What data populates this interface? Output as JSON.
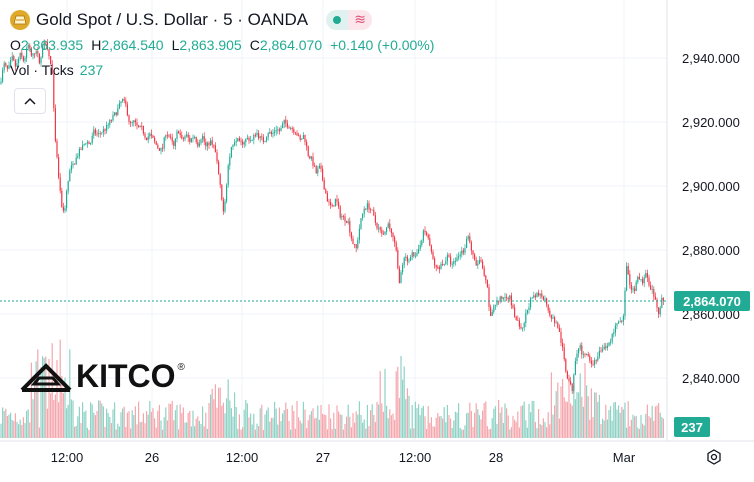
{
  "header": {
    "title": "Gold Spot / U.S. Dollar · 5 · OANDA",
    "market_status_icon": "green-dot-icon",
    "indicator_icon": "wave-icon"
  },
  "ohlc": {
    "o_label": "O",
    "o_value": "2,863.935",
    "h_label": "H",
    "h_value": "2,864.540",
    "l_label": "L",
    "l_value": "2,863.905",
    "c_label": "C",
    "c_value": "2,864.070",
    "change": "+0.140 (+0.00%)"
  },
  "volume_legend": {
    "label": "Vol · Ticks",
    "value": "237"
  },
  "watermark": {
    "text": "KITCO",
    "mark": "®"
  },
  "colors": {
    "up": "#22ab94",
    "down": "#f23645",
    "vol_up": "#8fd3c6",
    "vol_down": "#f5a7ad",
    "grid": "#f0f3fa"
  },
  "chart_data": {
    "type": "candlestick",
    "y_axis": {
      "min": 2830,
      "max": 2946,
      "ticks": [
        2940,
        2920,
        2900,
        2880,
        2860,
        2840
      ],
      "tick_labels": [
        "2,940.000",
        "2,920.000",
        "2,900.000",
        "2,880.000",
        "2,860.000",
        "2,840.000"
      ]
    },
    "x_axis": {
      "tick_labels": [
        "12:00",
        "26",
        "12:00",
        "27",
        "12:00",
        "28",
        "Mar"
      ]
    },
    "current_price": {
      "value": 2864.07,
      "label": "2,864.070"
    },
    "current_volume": {
      "value": 237,
      "label": "237"
    },
    "price_path": [
      [
        0,
        2932
      ],
      [
        4,
        2938
      ],
      [
        8,
        2936
      ],
      [
        12,
        2940
      ],
      [
        16,
        2937
      ],
      [
        20,
        2941
      ],
      [
        24,
        2939
      ],
      [
        28,
        2944
      ],
      [
        32,
        2940
      ],
      [
        36,
        2943
      ],
      [
        40,
        2938
      ],
      [
        44,
        2946
      ],
      [
        48,
        2942
      ],
      [
        52,
        2936
      ],
      [
        55,
        2915
      ],
      [
        58,
        2905
      ],
      [
        61,
        2895
      ],
      [
        64,
        2891
      ],
      [
        67,
        2899
      ],
      [
        70,
        2905
      ],
      [
        74,
        2907
      ],
      [
        78,
        2910
      ],
      [
        82,
        2912
      ],
      [
        86,
        2914
      ],
      [
        90,
        2913
      ],
      [
        94,
        2917
      ],
      [
        98,
        2916
      ],
      [
        102,
        2917
      ],
      [
        106,
        2918
      ],
      [
        110,
        2920
      ],
      [
        114,
        2922
      ],
      [
        118,
        2924
      ],
      [
        122,
        2927
      ],
      [
        126,
        2925
      ],
      [
        130,
        2919
      ],
      [
        134,
        2920
      ],
      [
        138,
        2918
      ],
      [
        142,
        2918
      ],
      [
        146,
        2915
      ],
      [
        150,
        2916
      ],
      [
        154,
        2914
      ],
      [
        158,
        2912
      ],
      [
        162,
        2911
      ],
      [
        166,
        2917
      ],
      [
        170,
        2915
      ],
      [
        174,
        2912
      ],
      [
        178,
        2918
      ],
      [
        182,
        2914
      ],
      [
        186,
        2916
      ],
      [
        190,
        2914
      ],
      [
        194,
        2916
      ],
      [
        198,
        2913
      ],
      [
        202,
        2916
      ],
      [
        206,
        2912
      ],
      [
        210,
        2914
      ],
      [
        214,
        2913
      ],
      [
        218,
        2905
      ],
      [
        222,
        2895
      ],
      [
        224,
        2892
      ],
      [
        228,
        2906
      ],
      [
        232,
        2913
      ],
      [
        236,
        2915
      ],
      [
        240,
        2913
      ],
      [
        244,
        2914
      ],
      [
        248,
        2915
      ],
      [
        252,
        2914
      ],
      [
        256,
        2917
      ],
      [
        260,
        2915
      ],
      [
        264,
        2914
      ],
      [
        268,
        2917
      ],
      [
        272,
        2916
      ],
      [
        276,
        2918
      ],
      [
        280,
        2917
      ],
      [
        284,
        2920
      ],
      [
        288,
        2919
      ],
      [
        292,
        2918
      ],
      [
        296,
        2917
      ],
      [
        300,
        2914
      ],
      [
        304,
        2916
      ],
      [
        308,
        2910
      ],
      [
        312,
        2908
      ],
      [
        316,
        2904
      ],
      [
        320,
        2906
      ],
      [
        324,
        2900
      ],
      [
        328,
        2895
      ],
      [
        332,
        2893
      ],
      [
        336,
        2896
      ],
      [
        340,
        2891
      ],
      [
        344,
        2890
      ],
      [
        348,
        2889
      ],
      [
        352,
        2883
      ],
      [
        356,
        2880
      ],
      [
        360,
        2888
      ],
      [
        364,
        2893
      ],
      [
        368,
        2894
      ],
      [
        372,
        2892
      ],
      [
        376,
        2888
      ],
      [
        380,
        2886
      ],
      [
        384,
        2884
      ],
      [
        388,
        2888
      ],
      [
        392,
        2885
      ],
      [
        396,
        2880
      ],
      [
        399,
        2870
      ],
      [
        402,
        2874
      ],
      [
        405,
        2878
      ],
      [
        408,
        2876
      ],
      [
        412,
        2880
      ],
      [
        416,
        2877
      ],
      [
        420,
        2882
      ],
      [
        424,
        2886
      ],
      [
        428,
        2884
      ],
      [
        432,
        2878
      ],
      [
        436,
        2874
      ],
      [
        440,
        2875
      ],
      [
        444,
        2876
      ],
      [
        448,
        2878
      ],
      [
        452,
        2875
      ],
      [
        456,
        2877
      ],
      [
        460,
        2879
      ],
      [
        464,
        2880
      ],
      [
        468,
        2885
      ],
      [
        472,
        2879
      ],
      [
        476,
        2875
      ],
      [
        480,
        2877
      ],
      [
        484,
        2872
      ],
      [
        488,
        2867
      ],
      [
        490,
        2858
      ],
      [
        494,
        2863
      ],
      [
        498,
        2864
      ],
      [
        502,
        2865
      ],
      [
        506,
        2866
      ],
      [
        510,
        2865
      ],
      [
        514,
        2860
      ],
      [
        518,
        2857
      ],
      [
        522,
        2854
      ],
      [
        526,
        2860
      ],
      [
        530,
        2864
      ],
      [
        534,
        2865
      ],
      [
        538,
        2866
      ],
      [
        542,
        2866
      ],
      [
        546,
        2864
      ],
      [
        550,
        2860
      ],
      [
        554,
        2858
      ],
      [
        558,
        2856
      ],
      [
        562,
        2850
      ],
      [
        566,
        2842
      ],
      [
        570,
        2838
      ],
      [
        572,
        2836
      ],
      [
        576,
        2848
      ],
      [
        580,
        2850
      ],
      [
        584,
        2846
      ],
      [
        588,
        2848
      ],
      [
        592,
        2844
      ],
      [
        596,
        2846
      ],
      [
        600,
        2848
      ],
      [
        604,
        2849
      ],
      [
        608,
        2850
      ],
      [
        612,
        2853
      ],
      [
        616,
        2857
      ],
      [
        620,
        2858
      ],
      [
        624,
        2859
      ],
      [
        626,
        2876
      ],
      [
        630,
        2868
      ],
      [
        634,
        2867
      ],
      [
        638,
        2871
      ],
      [
        642,
        2870
      ],
      [
        646,
        2872
      ],
      [
        650,
        2869
      ],
      [
        654,
        2866
      ],
      [
        658,
        2860
      ],
      [
        662,
        2865
      ],
      [
        664,
        2864.07
      ]
    ]
  }
}
